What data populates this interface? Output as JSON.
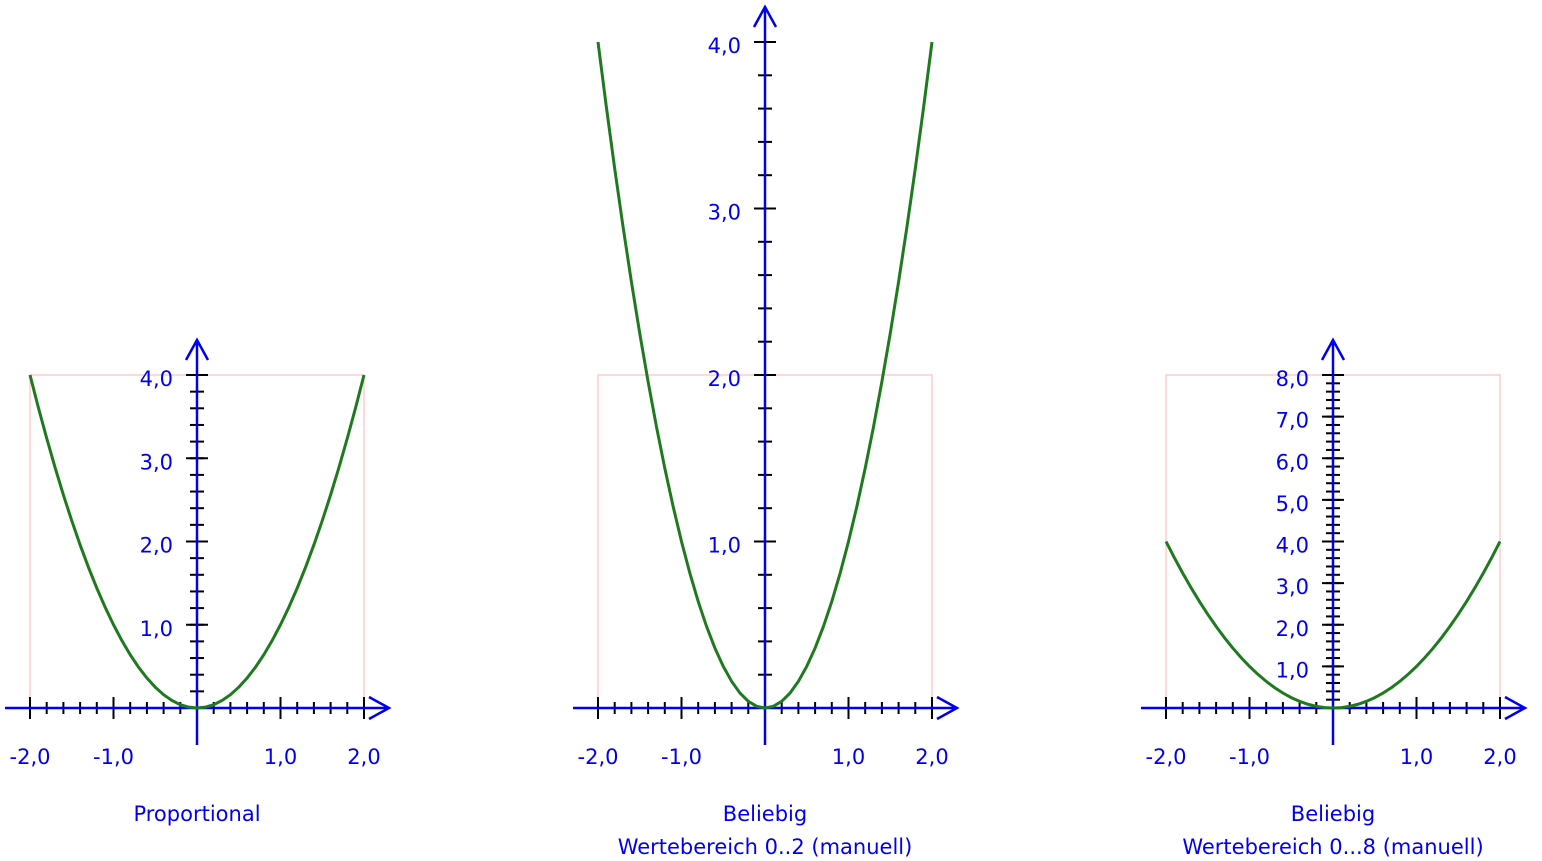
{
  "chart_data": [
    {
      "type": "line",
      "title": "Proportional",
      "color": "#1f7a1f",
      "axis_color": "#0000ee",
      "frame_color": "#ffb3b3",
      "x": [
        -2,
        -1.9,
        -1.8,
        -1.7,
        -1.6,
        -1.5,
        -1.4,
        -1.3,
        -1.2,
        -1.1,
        -1,
        -0.9,
        -0.8,
        -0.7,
        -0.6,
        -0.5,
        -0.4,
        -0.3,
        -0.2,
        -0.1,
        0,
        0.1,
        0.2,
        0.3,
        0.4,
        0.5,
        0.6,
        0.7,
        0.8,
        0.9,
        1,
        1.1,
        1.2,
        1.3,
        1.4,
        1.5,
        1.6,
        1.7,
        1.8,
        1.9,
        2
      ],
      "values": [
        4,
        3.61,
        3.24,
        2.89,
        2.56,
        2.25,
        1.96,
        1.69,
        1.44,
        1.21,
        1,
        0.81,
        0.64,
        0.49,
        0.36,
        0.25,
        0.16,
        0.09,
        0.04,
        0.01,
        0,
        0.01,
        0.04,
        0.09,
        0.16,
        0.25,
        0.36,
        0.49,
        0.64,
        0.81,
        1,
        1.21,
        1.44,
        1.69,
        1.96,
        2.25,
        2.56,
        2.89,
        3.24,
        3.61,
        4
      ],
      "xlim": [
        -2,
        2
      ],
      "ylim": [
        0,
        4
      ],
      "range": [
        0,
        4
      ],
      "xminor": 0.2,
      "yminor": 0.2,
      "xticks": [
        {
          "value": -2,
          "label": "-2,0"
        },
        {
          "value": -1,
          "label": "-1,0"
        },
        {
          "value": 1,
          "label": "1,0"
        },
        {
          "value": 2,
          "label": "2,0"
        }
      ],
      "yticks": [
        {
          "value": 1,
          "label": "1,0"
        },
        {
          "value": 2,
          "label": "2,0"
        },
        {
          "value": 3,
          "label": "3,0"
        },
        {
          "value": 4,
          "label": "4,0"
        }
      ]
    },
    {
      "type": "line",
      "title": "Beliebig",
      "subtitle": "Wertebereich 0..2 (manuell)",
      "color": "#1f7a1f",
      "axis_color": "#0000ee",
      "frame_color": "#ffb3b3",
      "x": [
        -2,
        -1.9,
        -1.8,
        -1.7,
        -1.6,
        -1.5,
        -1.4,
        -1.3,
        -1.2,
        -1.1,
        -1,
        -0.9,
        -0.8,
        -0.7,
        -0.6,
        -0.5,
        -0.4,
        -0.3,
        -0.2,
        -0.1,
        0,
        0.1,
        0.2,
        0.3,
        0.4,
        0.5,
        0.6,
        0.7,
        0.8,
        0.9,
        1,
        1.1,
        1.2,
        1.3,
        1.4,
        1.5,
        1.6,
        1.7,
        1.8,
        1.9,
        2
      ],
      "values": [
        4,
        3.61,
        3.24,
        2.89,
        2.56,
        2.25,
        1.96,
        1.69,
        1.44,
        1.21,
        1,
        0.81,
        0.64,
        0.49,
        0.36,
        0.25,
        0.16,
        0.09,
        0.04,
        0.01,
        0,
        0.01,
        0.04,
        0.09,
        0.16,
        0.25,
        0.36,
        0.49,
        0.64,
        0.81,
        1,
        1.21,
        1.44,
        1.69,
        1.96,
        2.25,
        2.56,
        2.89,
        3.24,
        3.61,
        4
      ],
      "xlim": [
        -2,
        2
      ],
      "ylim": [
        0,
        4
      ],
      "range": [
        0,
        2
      ],
      "xminor": 0.2,
      "yminor": 0.2,
      "xticks": [
        {
          "value": -2,
          "label": "-2,0"
        },
        {
          "value": -1,
          "label": "-1,0"
        },
        {
          "value": 1,
          "label": "1,0"
        },
        {
          "value": 2,
          "label": "2,0"
        }
      ],
      "yticks": [
        {
          "value": 1,
          "label": "1,0"
        },
        {
          "value": 2,
          "label": "2,0"
        },
        {
          "value": 3,
          "label": "3,0"
        },
        {
          "value": 4,
          "label": "4,0"
        }
      ]
    },
    {
      "type": "line",
      "title": "Beliebig",
      "subtitle": "Wertebereich 0...8 (manuell)",
      "color": "#1f7a1f",
      "axis_color": "#0000ee",
      "frame_color": "#ffb3b3",
      "x": [
        -2,
        -1.9,
        -1.8,
        -1.7,
        -1.6,
        -1.5,
        -1.4,
        -1.3,
        -1.2,
        -1.1,
        -1,
        -0.9,
        -0.8,
        -0.7,
        -0.6,
        -0.5,
        -0.4,
        -0.3,
        -0.2,
        -0.1,
        0,
        0.1,
        0.2,
        0.3,
        0.4,
        0.5,
        0.6,
        0.7,
        0.8,
        0.9,
        1,
        1.1,
        1.2,
        1.3,
        1.4,
        1.5,
        1.6,
        1.7,
        1.8,
        1.9,
        2
      ],
      "values": [
        4,
        3.61,
        3.24,
        2.89,
        2.56,
        2.25,
        1.96,
        1.69,
        1.44,
        1.21,
        1,
        0.81,
        0.64,
        0.49,
        0.36,
        0.25,
        0.16,
        0.09,
        0.04,
        0.01,
        0,
        0.01,
        0.04,
        0.09,
        0.16,
        0.25,
        0.36,
        0.49,
        0.64,
        0.81,
        1,
        1.21,
        1.44,
        1.69,
        1.96,
        2.25,
        2.56,
        2.89,
        3.24,
        3.61,
        4
      ],
      "xlim": [
        -2,
        2
      ],
      "ylim": [
        0,
        8
      ],
      "range": [
        0,
        8
      ],
      "xminor": 0.2,
      "yminor": 0.2,
      "xticks": [
        {
          "value": -2,
          "label": "-2,0"
        },
        {
          "value": -1,
          "label": "-1,0"
        },
        {
          "value": 1,
          "label": "1,0"
        },
        {
          "value": 2,
          "label": "2,0"
        }
      ],
      "yticks": [
        {
          "value": 1,
          "label": "1,0"
        },
        {
          "value": 2,
          "label": "2,0"
        },
        {
          "value": 3,
          "label": "3,0"
        },
        {
          "value": 4,
          "label": "4,0"
        },
        {
          "value": 5,
          "label": "5,0"
        },
        {
          "value": 6,
          "label": "6,0"
        },
        {
          "value": 7,
          "label": "7,0"
        },
        {
          "value": 8,
          "label": "8,0"
        }
      ]
    }
  ]
}
